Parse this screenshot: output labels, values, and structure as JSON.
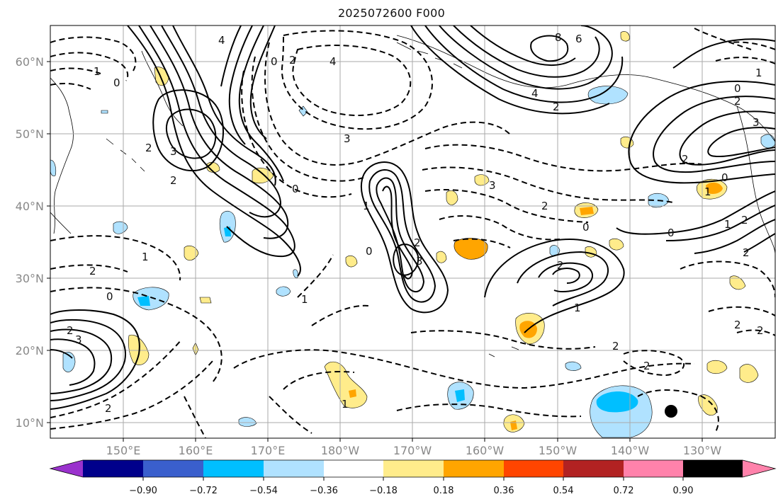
{
  "title": "2025072600 F000",
  "map": {
    "lat_labels": [
      "60°N",
      "50°N",
      "40°N",
      "30°N",
      "20°N",
      "10°N"
    ],
    "lon_labels": [
      "150°E",
      "160°E",
      "170°E",
      "180°W",
      "170°W",
      "160°W",
      "150°W",
      "140°W",
      "130°W"
    ],
    "contour_labels": [
      "1",
      "0",
      "2",
      "3",
      "4",
      "0",
      "2",
      "4",
      "8",
      "6",
      "4",
      "2",
      "0",
      "3",
      "2",
      "1",
      "0",
      "2",
      "3",
      "2",
      "1",
      "2",
      "3",
      "0",
      "2",
      "3",
      "1",
      "0",
      "2",
      "1",
      "0",
      "2",
      "1",
      "2",
      "0",
      "1",
      "2",
      "2",
      "1",
      "2",
      "3",
      "2",
      "2",
      "2",
      "1",
      "0",
      "2"
    ]
  },
  "colorbar": {
    "tick_labels": [
      "−0.90",
      "−0.72",
      "−0.54",
      "−0.36",
      "−0.18",
      "0.18",
      "0.36",
      "0.54",
      "0.72",
      "0.90"
    ],
    "colors": [
      "#9a32cd",
      "#00008b",
      "#3a5fcd",
      "#00bfff",
      "#b0e2ff",
      "#ffffff",
      "#ffec8b",
      "#ffa500",
      "#ff4500",
      "#b22222",
      "#ff82ab"
    ]
  },
  "colors": {
    "frame": "#000000",
    "grid": "#aaaaaa",
    "label": "#888888"
  }
}
